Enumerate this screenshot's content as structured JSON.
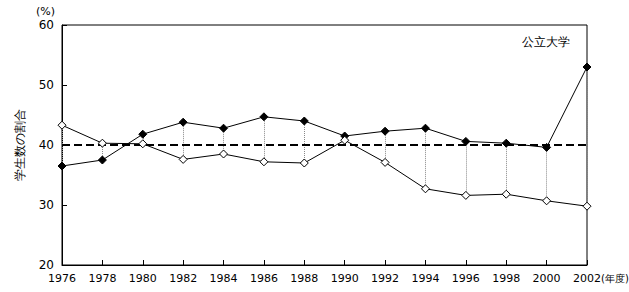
{
  "chart_data": {
    "type": "line",
    "title": "公立大学",
    "ylabel": "学生数の割合",
    "y_unit_label": "(%)",
    "xlabel": "(年度)",
    "categories": [
      1976,
      1978,
      1980,
      1982,
      1984,
      1986,
      1988,
      1990,
      1992,
      1994,
      1996,
      1998,
      2000,
      2002
    ],
    "series": [
      {
        "color": "#000000",
        "marker": "filled_diamond",
        "line_style": "solid",
        "values": [
          36.5,
          37.5,
          41.8,
          43.8,
          42.8,
          44.7,
          44.0,
          41.5,
          42.3,
          42.8,
          40.6,
          40.3,
          39.6,
          53.0
        ]
      },
      {
        "color": "#000000",
        "marker": "open_diamond",
        "line_style": "solid",
        "values": [
          43.3,
          40.3,
          40.2,
          37.6,
          38.5,
          37.2,
          37.0,
          40.8,
          37.1,
          32.7,
          31.6,
          31.8,
          30.7,
          29.8
        ]
      }
    ],
    "reference_line": {
      "value": 40,
      "line_style": "dashed",
      "color": "#000000"
    },
    "ylim": [
      20,
      60
    ],
    "yticks": [
      20,
      30,
      40,
      50,
      60
    ],
    "grid": false
  }
}
